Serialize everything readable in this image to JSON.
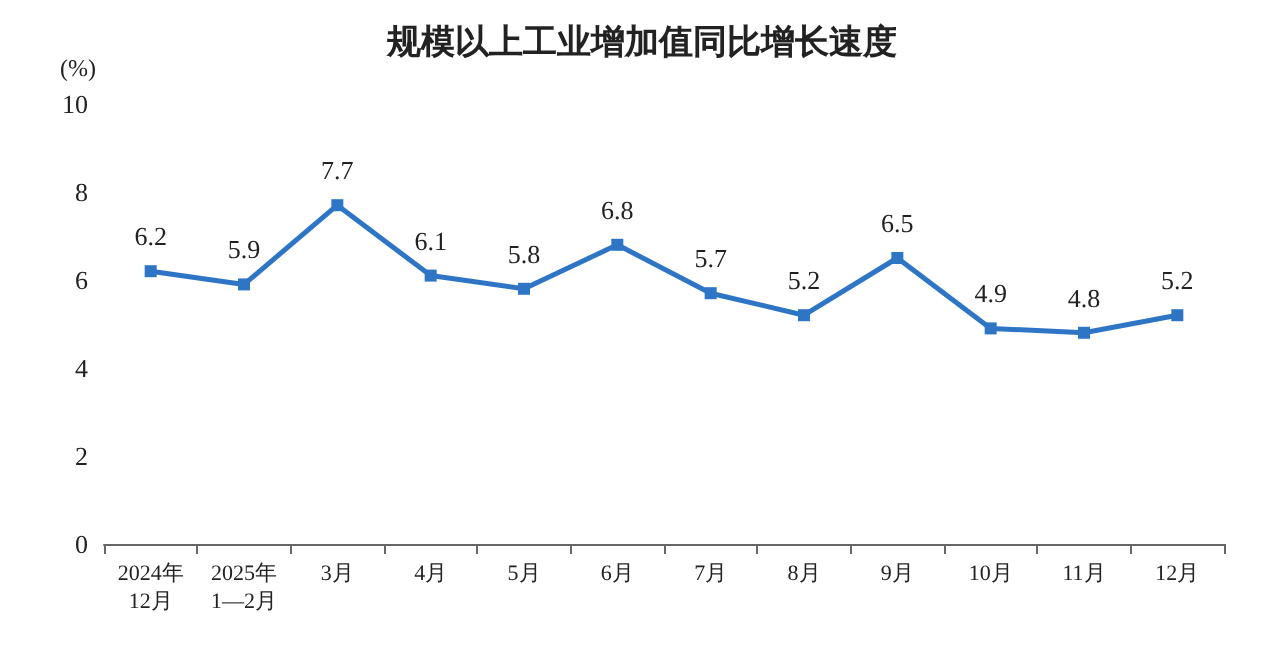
{
  "chart_data": {
    "type": "line",
    "title": "规模以上工业增加值同比增长速度",
    "ylabel": "(%)",
    "categories": [
      "2024年\n12月",
      "2025年\n1—2月",
      "3月",
      "4月",
      "5月",
      "6月",
      "7月",
      "8月",
      "9月",
      "10月",
      "11月",
      "12月"
    ],
    "series": [
      {
        "color": "#2e75c6",
        "values": [
          6.2,
          5.9,
          7.7,
          6.1,
          5.8,
          6.8,
          5.7,
          5.2,
          6.5,
          4.9,
          4.8,
          5.2
        ]
      }
    ],
    "ylim": [
      0,
      10
    ],
    "yticks": [
      0,
      2,
      4,
      6,
      8,
      10
    ],
    "grid": false,
    "marker": "square",
    "line_style": "solid",
    "data_labels": true
  }
}
